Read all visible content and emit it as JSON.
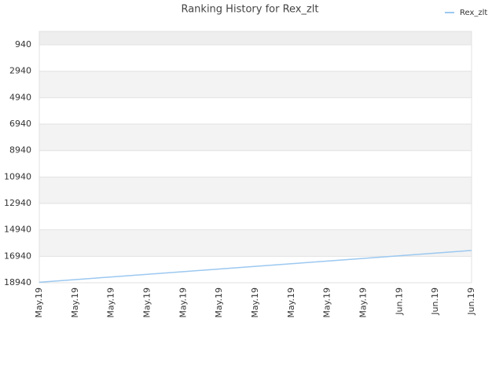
{
  "chart_data": {
    "type": "line",
    "title": "Ranking History for Rex_zlt",
    "categories": [
      "May.19",
      "May.19",
      "May.19",
      "May.19",
      "May.19",
      "May.19",
      "May.19",
      "May.19",
      "May.19",
      "May.19",
      "Jun.19",
      "Jun.19",
      "Jun.19"
    ],
    "series": [
      {
        "name": "Rex_zlt",
        "color": "#9cc8f0",
        "values": [
          18900,
          18700,
          18500,
          18300,
          18100,
          17900,
          17700,
          17500,
          17300,
          17100,
          16900,
          16700,
          16500
        ]
      }
    ],
    "ylim": [
      -73,
      18940
    ],
    "y_reversed": true,
    "yticks": [
      940,
      2940,
      4940,
      6940,
      8940,
      10940,
      12940,
      14940,
      16940,
      18940
    ],
    "grid": true,
    "legend": "top-right"
  }
}
